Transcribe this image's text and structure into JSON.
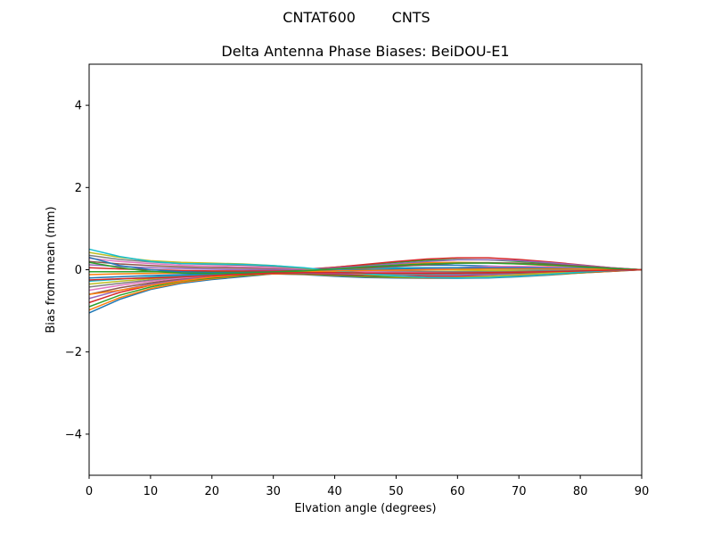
{
  "figure": {
    "suptitle": "CNTAT600        CNTS"
  },
  "chart_data": {
    "type": "line",
    "title": "Delta Antenna Phase Biases: BeiDOU-E1",
    "xlabel": "Elvation angle (degrees)",
    "ylabel": "Bias from mean (mm)",
    "xlim": [
      0,
      90
    ],
    "ylim": [
      -5,
      5
    ],
    "xticks": [
      0,
      10,
      20,
      30,
      40,
      50,
      60,
      70,
      80,
      90
    ],
    "yticks": [
      -4,
      -2,
      0,
      2,
      4
    ],
    "xtick_labels": [
      "0",
      "10",
      "20",
      "30",
      "40",
      "50",
      "60",
      "70",
      "80",
      "90"
    ],
    "ytick_labels": [
      "−4",
      "−2",
      "0",
      "2",
      "4"
    ],
    "grid": false,
    "legend": "none",
    "x": [
      0,
      5,
      10,
      15,
      20,
      25,
      30,
      35,
      40,
      45,
      50,
      55,
      60,
      65,
      70,
      75,
      80,
      85,
      90
    ],
    "colors": [
      "#1f77b4",
      "#ff7f0e",
      "#2ca02c",
      "#d62728",
      "#9467bd",
      "#8c564b",
      "#e377c2",
      "#7f7f7f",
      "#bcbd22",
      "#17becf"
    ],
    "series": [
      {
        "values": [
          -1.05,
          -0.72,
          -0.48,
          -0.33,
          -0.24,
          -0.17,
          -0.1,
          -0.12,
          -0.16,
          -0.19,
          -0.2,
          -0.21,
          -0.21,
          -0.2,
          -0.17,
          -0.13,
          -0.08,
          -0.04,
          0
        ]
      },
      {
        "values": [
          -0.98,
          -0.68,
          -0.46,
          -0.31,
          -0.22,
          -0.15,
          -0.1,
          -0.11,
          -0.14,
          -0.17,
          -0.19,
          -0.2,
          -0.2,
          -0.19,
          -0.16,
          -0.12,
          -0.08,
          -0.04,
          0
        ]
      },
      {
        "values": [
          -0.9,
          -0.62,
          -0.42,
          -0.28,
          -0.2,
          -0.14,
          -0.09,
          -0.1,
          -0.13,
          -0.16,
          -0.18,
          -0.19,
          -0.19,
          -0.18,
          -0.15,
          -0.11,
          -0.07,
          -0.03,
          0
        ]
      },
      {
        "values": [
          -0.8,
          -0.55,
          -0.38,
          -0.26,
          -0.18,
          -0.12,
          -0.09,
          -0.09,
          -0.11,
          -0.13,
          -0.15,
          -0.16,
          -0.16,
          -0.15,
          -0.13,
          -0.1,
          -0.06,
          -0.03,
          0
        ]
      },
      {
        "values": [
          -0.7,
          -0.5,
          -0.35,
          -0.24,
          -0.16,
          -0.11,
          -0.08,
          -0.08,
          -0.09,
          -0.11,
          -0.12,
          -0.13,
          -0.13,
          -0.12,
          -0.1,
          -0.08,
          -0.05,
          -0.02,
          0
        ]
      },
      {
        "values": [
          -0.6,
          -0.44,
          -0.32,
          -0.22,
          -0.15,
          -0.1,
          -0.08,
          -0.07,
          -0.07,
          -0.08,
          -0.09,
          -0.1,
          -0.1,
          -0.09,
          -0.08,
          -0.06,
          -0.04,
          -0.02,
          0
        ]
      },
      {
        "values": [
          -0.5,
          -0.38,
          -0.28,
          -0.2,
          -0.14,
          -0.1,
          -0.08,
          -0.06,
          -0.05,
          -0.05,
          -0.06,
          -0.07,
          -0.07,
          -0.07,
          -0.06,
          -0.05,
          -0.03,
          -0.02,
          0
        ]
      },
      {
        "values": [
          -0.42,
          -0.33,
          -0.25,
          -0.18,
          -0.13,
          -0.09,
          -0.07,
          -0.05,
          -0.03,
          -0.02,
          -0.03,
          -0.04,
          -0.05,
          -0.05,
          -0.04,
          -0.04,
          -0.03,
          -0.01,
          0
        ]
      },
      {
        "values": [
          -0.35,
          -0.28,
          -0.22,
          -0.16,
          -0.12,
          -0.09,
          -0.07,
          -0.04,
          -0.01,
          0.01,
          0.01,
          0,
          -0.01,
          -0.02,
          -0.02,
          -0.02,
          -0.02,
          -0.01,
          0
        ]
      },
      {
        "values": [
          -0.28,
          -0.23,
          -0.18,
          -0.14,
          -0.11,
          -0.08,
          -0.06,
          -0.03,
          0.01,
          0.04,
          0.05,
          0.05,
          0.04,
          0.02,
          0.01,
          0,
          -0.01,
          -0.01,
          0
        ]
      },
      {
        "values": [
          -0.2,
          -0.17,
          -0.14,
          -0.12,
          -0.1,
          -0.08,
          -0.06,
          -0.02,
          0.03,
          0.07,
          0.1,
          0.11,
          0.11,
          0.09,
          0.07,
          0.04,
          0.02,
          0.01,
          0
        ]
      },
      {
        "values": [
          -0.12,
          -0.1,
          -0.09,
          -0.08,
          -0.08,
          -0.07,
          -0.05,
          -0.01,
          0.05,
          0.1,
          0.14,
          0.17,
          0.18,
          0.17,
          0.14,
          0.1,
          0.06,
          0.03,
          0
        ]
      },
      {
        "values": [
          -0.05,
          -0.05,
          -0.05,
          -0.05,
          -0.05,
          -0.05,
          -0.04,
          0,
          0.06,
          0.12,
          0.18,
          0.23,
          0.25,
          0.24,
          0.2,
          0.15,
          0.09,
          0.04,
          0
        ]
      },
      {
        "values": [
          0.05,
          0.02,
          0,
          -0.02,
          -0.03,
          -0.03,
          -0.02,
          0.01,
          0.06,
          0.13,
          0.2,
          0.26,
          0.29,
          0.29,
          0.25,
          0.19,
          0.12,
          0.05,
          0
        ]
      },
      {
        "values": [
          0.12,
          0.08,
          0.05,
          0.03,
          0.01,
          0,
          0,
          0.01,
          0.04,
          0.09,
          0.15,
          0.2,
          0.24,
          0.24,
          0.22,
          0.17,
          0.11,
          0.05,
          0
        ]
      },
      {
        "values": [
          0.2,
          0.14,
          0.1,
          0.07,
          0.05,
          0.04,
          0.03,
          0.02,
          0.02,
          0.04,
          0.08,
          0.12,
          0.16,
          0.17,
          0.16,
          0.13,
          0.09,
          0.04,
          0
        ]
      },
      {
        "values": [
          0.28,
          0.2,
          0.15,
          0.11,
          0.09,
          0.07,
          0.05,
          0.02,
          -0.01,
          -0.02,
          -0.01,
          0.02,
          0.05,
          0.08,
          0.08,
          0.07,
          0.05,
          0.02,
          0
        ]
      },
      {
        "values": [
          0.35,
          0.25,
          0.19,
          0.15,
          0.13,
          0.11,
          0.08,
          0.03,
          -0.03,
          -0.08,
          -0.11,
          -0.12,
          -0.1,
          -0.07,
          -0.04,
          -0.02,
          0,
          0,
          0
        ]
      },
      {
        "values": [
          0.42,
          0.3,
          0.22,
          0.18,
          0.16,
          0.14,
          0.1,
          0.04,
          -0.04,
          -0.11,
          -0.16,
          -0.19,
          -0.19,
          -0.16,
          -0.12,
          -0.08,
          -0.04,
          -0.01,
          0
        ]
      },
      {
        "values": [
          0.5,
          0.32,
          0.2,
          0.15,
          0.14,
          0.13,
          0.1,
          0.05,
          -0.03,
          -0.1,
          -0.15,
          -0.19,
          -0.2,
          -0.19,
          -0.16,
          -0.11,
          -0.06,
          -0.02,
          0
        ]
      },
      {
        "values": [
          0.3,
          0.1,
          0,
          -0.05,
          -0.07,
          -0.07,
          -0.06,
          -0.04,
          -0.02,
          0,
          0.02,
          0.04,
          0.05,
          0.05,
          0.05,
          0.04,
          0.03,
          0.01,
          0
        ]
      },
      {
        "values": [
          -0.6,
          -0.5,
          -0.38,
          -0.27,
          -0.18,
          -0.12,
          -0.08,
          -0.05,
          -0.03,
          -0.02,
          -0.01,
          0,
          0.01,
          0.02,
          0.02,
          0.02,
          0.02,
          0.01,
          0
        ]
      },
      {
        "values": [
          0.18,
          0.05,
          -0.04,
          -0.08,
          -0.09,
          -0.08,
          -0.06,
          -0.03,
          0.02,
          0.07,
          0.11,
          0.14,
          0.16,
          0.16,
          0.14,
          0.11,
          0.07,
          0.03,
          0
        ]
      },
      {
        "values": [
          -0.25,
          -0.22,
          -0.2,
          -0.17,
          -0.14,
          -0.11,
          -0.08,
          -0.07,
          -0.07,
          -0.08,
          -0.08,
          -0.08,
          -0.08,
          -0.07,
          -0.06,
          -0.05,
          -0.03,
          -0.01,
          0
        ]
      }
    ]
  }
}
